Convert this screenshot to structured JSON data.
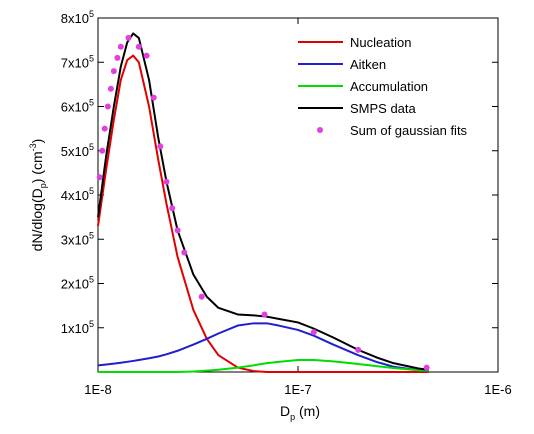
{
  "chart_data": {
    "type": "line",
    "xlabel": [
      "D",
      "p",
      " (m)"
    ],
    "ylabel": [
      "dN/dlog(D",
      "p",
      ") (cm",
      "-3",
      ")"
    ],
    "xscale": "log",
    "xlim": [
      1e-08,
      1e-06
    ],
    "ylim": [
      0,
      800000
    ],
    "xticks": [
      {
        "value": 1e-08,
        "label": "1E-8"
      },
      {
        "value": 1e-07,
        "label": "1E-7"
      },
      {
        "value": 1e-06,
        "label": "1E-6"
      }
    ],
    "yticks": [
      {
        "value": 100000,
        "label": "1x10",
        "exponent": "5"
      },
      {
        "value": 200000,
        "label": "2x10",
        "exponent": "5"
      },
      {
        "value": 300000,
        "label": "3x10",
        "exponent": "5"
      },
      {
        "value": 400000,
        "label": "4x10",
        "exponent": "5"
      },
      {
        "value": 500000,
        "label": "5x10",
        "exponent": "5"
      },
      {
        "value": 600000,
        "label": "6x10",
        "exponent": "5"
      },
      {
        "value": 700000,
        "label": "7x10",
        "exponent": "5"
      },
      {
        "value": 800000,
        "label": "8x10",
        "exponent": "5"
      }
    ],
    "legend": "upper right",
    "x": [
      1e-08,
      1.1e-08,
      1.2e-08,
      1.3e-08,
      1.4e-08,
      1.5e-08,
      1.6e-08,
      1.8e-08,
      2e-08,
      2.2e-08,
      2.5e-08,
      3e-08,
      3.5e-08,
      4e-08,
      5e-08,
      6e-08,
      7e-08,
      8e-08,
      1e-07,
      1.2e-07,
      1.5e-07,
      2e-07,
      2.5e-07,
      3e-07,
      4e-07,
      4.5e-07
    ],
    "series": [
      {
        "name": "Nucleation",
        "color": "#e00000",
        "values": [
          330000,
          460000,
          570000,
          660000,
          705000,
          715000,
          700000,
          600000,
          480000,
          380000,
          260000,
          140000,
          75000,
          38000,
          10000,
          2000,
          0,
          0,
          0,
          0,
          0,
          0,
          0,
          0,
          0,
          0
        ]
      },
      {
        "name": "Aitken",
        "color": "#1f1fd0",
        "values": [
          15000,
          17000,
          19000,
          21000,
          23000,
          25000,
          27000,
          31000,
          35000,
          40000,
          48000,
          62000,
          75000,
          87000,
          105000,
          110000,
          110000,
          105000,
          95000,
          82000,
          62000,
          38000,
          22000,
          12000,
          4000,
          2000
        ]
      },
      {
        "name": "Accumulation",
        "color": "#00dd00",
        "values": [
          0,
          0,
          0,
          0,
          0,
          0,
          0,
          0,
          0,
          0,
          0,
          1000,
          3000,
          5000,
          10000,
          15000,
          20000,
          23000,
          27000,
          27000,
          24000,
          18000,
          13000,
          9000,
          4000,
          3000
        ]
      },
      {
        "name": "SMPS data",
        "color": "#000000",
        "values": [
          350000,
          490000,
          600000,
          690000,
          745000,
          765000,
          755000,
          660000,
          530000,
          430000,
          320000,
          220000,
          170000,
          145000,
          130000,
          128000,
          125000,
          120000,
          112000,
          98000,
          78000,
          50000,
          32000,
          20000,
          8000,
          5000
        ]
      }
    ],
    "scatter": {
      "name": "Sum of gaussian fits",
      "color": "#e040e0",
      "x": [
        1.02e-08,
        1.05e-08,
        1.08e-08,
        1.12e-08,
        1.16e-08,
        1.2e-08,
        1.25e-08,
        1.3e-08,
        1.42e-08,
        1.6e-08,
        1.75e-08,
        1.9e-08,
        2.05e-08,
        2.2e-08,
        2.35e-08,
        2.5e-08,
        2.7e-08,
        3.3e-08,
        6.8e-08,
        1.2e-07,
        2e-07,
        4.4e-07
      ],
      "values": [
        440000,
        500000,
        550000,
        600000,
        640000,
        680000,
        710000,
        735000,
        755000,
        735000,
        715000,
        620000,
        510000,
        430000,
        370000,
        320000,
        270000,
        170000,
        130000,
        90000,
        50000,
        10000
      ]
    }
  }
}
